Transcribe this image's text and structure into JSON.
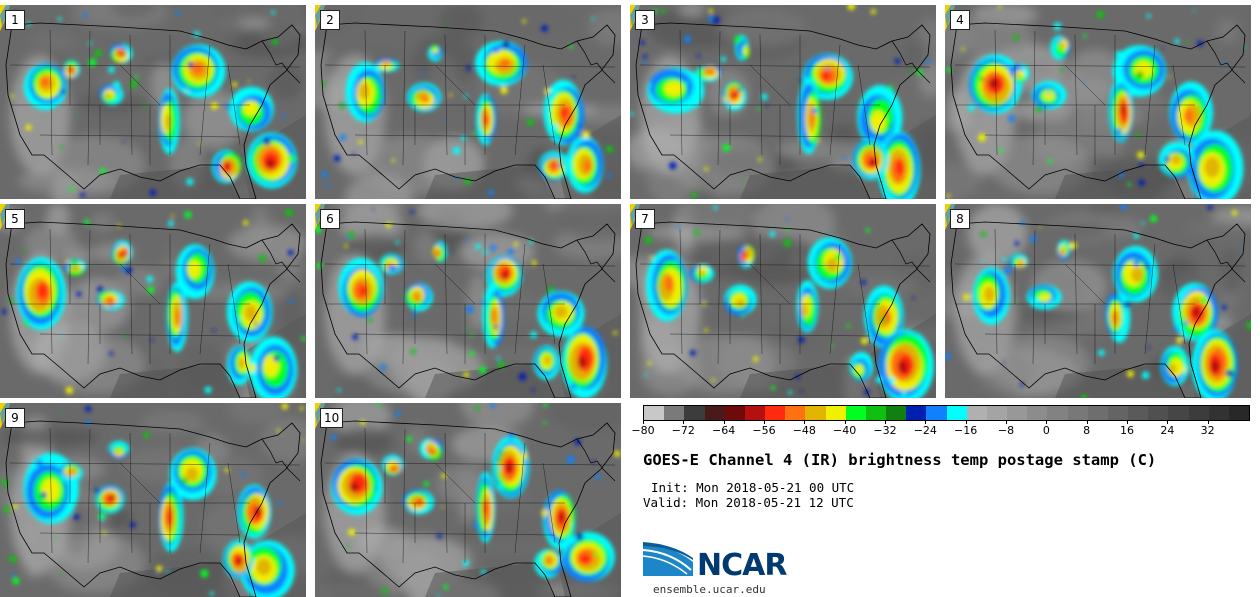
{
  "product": {
    "title": "GOES-E Channel 4 (IR) brightness temp postage stamp (C)",
    "init": "Init: Mon 2018-05-21 00 UTC",
    "valid": "Valid: Mon 2018-05-21 12 UTC",
    "units": "C"
  },
  "members": [
    "1",
    "2",
    "3",
    "4",
    "5",
    "6",
    "7",
    "8",
    "9",
    "10"
  ],
  "colorbar": {
    "min": -80,
    "max": 40,
    "step": 4,
    "tick_labels": [
      "−80",
      "−72",
      "−64",
      "−56",
      "−48",
      "−40",
      "−32",
      "−24",
      "−16",
      "−8",
      "0",
      "8",
      "16",
      "24",
      "32"
    ],
    "tick_values": [
      -80,
      -72,
      -64,
      -56,
      -48,
      -40,
      -32,
      -24,
      -16,
      -8,
      0,
      8,
      16,
      24,
      32
    ],
    "colors": [
      "#c8c8c8",
      "#7a7a7a",
      "#3c3c3c",
      "#4a1a1a",
      "#6e0a0a",
      "#b51010",
      "#ff2a10",
      "#ff7010",
      "#e0b400",
      "#f0f000",
      "#00ff20",
      "#10c010",
      "#108010",
      "#0020b0",
      "#1080ff",
      "#00ffff",
      "#b0b0b0",
      "#a4a4a4",
      "#989898",
      "#8c8c8c",
      "#828282",
      "#787878",
      "#6e6e6e",
      "#646464",
      "#5a5a5a",
      "#505050",
      "#464646",
      "#3c3c3c",
      "#323232",
      "#282828"
    ]
  },
  "branding": {
    "logo_text": "NCAR",
    "site": "ensemble.ucar.edu"
  }
}
